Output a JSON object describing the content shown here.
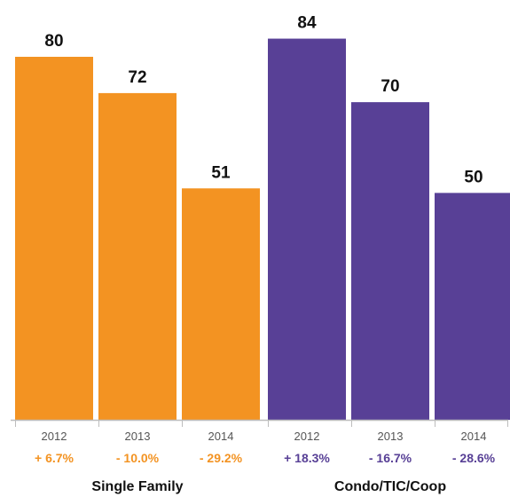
{
  "chart_data": {
    "type": "bar",
    "ylim": [
      0,
      95
    ],
    "groups": [
      {
        "name": "Single Family",
        "color": "#F39322",
        "bars": [
          {
            "year": "2012",
            "value": 80,
            "change": "+ 6.7%"
          },
          {
            "year": "2013",
            "value": 72,
            "change": "- 10.0%"
          },
          {
            "year": "2014",
            "value": 51,
            "change": "- 29.2%"
          }
        ]
      },
      {
        "name": "Condo/TIC/Coop",
        "color": "#584096",
        "bars": [
          {
            "year": "2012",
            "value": 84,
            "change": "+ 18.3%"
          },
          {
            "year": "2013",
            "value": 70,
            "change": "- 16.7%"
          },
          {
            "year": "2014",
            "value": 50,
            "change": "- 28.6%"
          }
        ]
      }
    ]
  }
}
